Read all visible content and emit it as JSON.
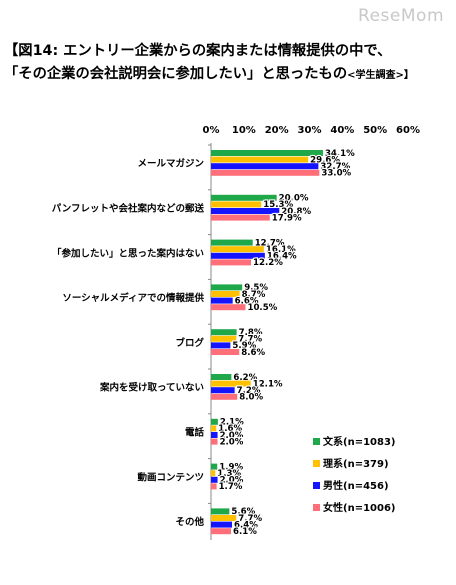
{
  "watermark": "ReseMom",
  "title": {
    "line1": "【図14: エントリー企業からの案内または情報提供の中で、",
    "line2": "「その企業の会社説明会に参加したい」と思ったもの",
    "note": "<学生調査>】"
  },
  "colors": {
    "bunkei": "#1fa84a",
    "rikei": "#ffc000",
    "male": "#1414ff",
    "female": "#ff6f7a"
  },
  "chart_data": {
    "type": "bar",
    "orientation": "horizontal",
    "xlim": [
      0,
      60
    ],
    "xticks": [
      "0%",
      "10%",
      "20%",
      "30%",
      "40%",
      "50%",
      "60%"
    ],
    "grid": false,
    "legend_position": "bottom-right",
    "categories": [
      "メールマガジン",
      "パンフレットや会社案内などの郵送",
      "「参加したい」と思った案内はない",
      "ソーシャルメディアでの情報提供",
      "ブログ",
      "案内を受け取っていない",
      "電話",
      "動画コンテンツ",
      "その他"
    ],
    "series": [
      {
        "name": "文系(n=1083)",
        "color": "#1fa84a",
        "values": [
          34.1,
          20.0,
          12.7,
          9.5,
          7.8,
          6.2,
          2.1,
          1.9,
          5.6
        ]
      },
      {
        "name": "理系(n=379)",
        "color": "#ffc000",
        "values": [
          29.6,
          15.3,
          16.1,
          8.7,
          7.7,
          12.1,
          1.6,
          1.3,
          7.7
        ]
      },
      {
        "name": "男性(n=456)",
        "color": "#1414ff",
        "values": [
          32.7,
          20.8,
          16.4,
          6.6,
          5.9,
          7.2,
          2.0,
          2.0,
          6.4
        ]
      },
      {
        "name": "女性(n=1006)",
        "color": "#ff6f7a",
        "values": [
          33.0,
          17.9,
          12.2,
          10.5,
          8.6,
          8.0,
          2.0,
          1.7,
          6.1
        ]
      }
    ],
    "labels": [
      [
        "34.1%",
        "29.6%",
        "32.7%",
        "33.0%"
      ],
      [
        "20.0%",
        "15.3%",
        "20.8%",
        "17.9%"
      ],
      [
        "12.7%",
        "16.1%",
        "16.4%",
        "12.2%"
      ],
      [
        "9.5%",
        "8.7%",
        "6.6%",
        "10.5%"
      ],
      [
        "7.8%",
        "7.7%",
        "5.9%",
        "8.6%"
      ],
      [
        "6.2%",
        "12.1%",
        "7.2%",
        "8.0%"
      ],
      [
        "2.1%",
        "1.6%",
        "2.0%",
        "2.0%"
      ],
      [
        "1.9%",
        "1.3%",
        "2.0%",
        "1.7%"
      ],
      [
        "5.6%",
        "7.7%",
        "6.4%",
        "6.1%"
      ]
    ]
  }
}
